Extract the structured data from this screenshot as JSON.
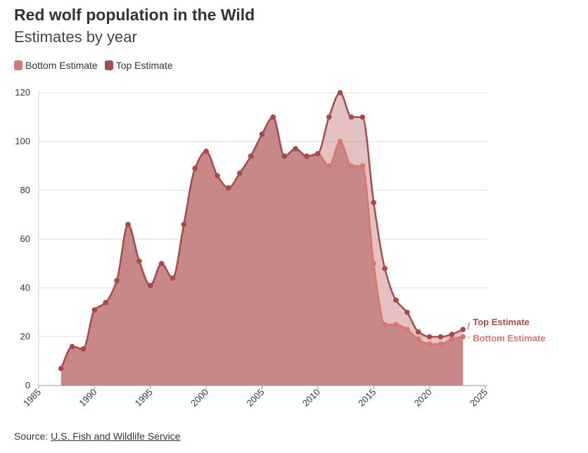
{
  "header": {
    "title": "Red wolf population in the Wild",
    "subtitle": "Estimates by year"
  },
  "legend": {
    "items": [
      {
        "label": "Bottom Estimate",
        "color": "#d97571"
      },
      {
        "label": "Top Estimate",
        "color": "#a64b4d"
      }
    ]
  },
  "footer": {
    "source_prefix": "Source: ",
    "source_link": "U.S. Fish and Wildlife Service"
  },
  "chart_data": {
    "type": "area",
    "title": "Red wolf population in the Wild",
    "subtitle": "Estimates by year",
    "xlim": [
      1985,
      2025
    ],
    "ylim": [
      0,
      120
    ],
    "x_ticks": [
      1985,
      1990,
      1995,
      2000,
      2005,
      2010,
      2015,
      2020,
      2025
    ],
    "y_ticks": [
      0,
      20,
      40,
      60,
      80,
      100,
      120
    ],
    "grid": true,
    "legend_position": "top-left",
    "x": [
      1987,
      1988,
      1989,
      1990,
      1991,
      1992,
      1993,
      1994,
      1995,
      1996,
      1997,
      1998,
      1999,
      2000,
      2001,
      2002,
      2003,
      2004,
      2005,
      2006,
      2007,
      2008,
      2009,
      2010,
      2011,
      2012,
      2013,
      2014,
      2015,
      2016,
      2017,
      2018,
      2019,
      2020,
      2021,
      2022,
      2023
    ],
    "series": [
      {
        "name": "Bottom Estimate",
        "color": "#d97571",
        "end_label": "Bottom Estimate",
        "values": [
          7,
          16,
          15,
          31,
          34,
          43,
          66,
          51,
          41,
          50,
          44,
          66,
          89,
          96,
          86,
          81,
          87,
          94,
          103,
          110,
          94,
          97,
          94,
          95,
          90,
          100,
          90,
          90,
          50,
          25,
          25,
          23,
          19,
          17,
          17,
          19,
          20
        ]
      },
      {
        "name": "Top Estimate",
        "color": "#a64b4d",
        "end_label": "Top Estimate",
        "values": [
          7,
          16,
          15,
          31,
          34,
          43,
          66,
          51,
          41,
          50,
          44,
          66,
          89,
          96,
          86,
          81,
          87,
          94,
          103,
          110,
          94,
          97,
          94,
          95,
          110,
          120,
          110,
          110,
          75,
          48,
          35,
          30,
          22,
          20,
          20,
          21,
          23
        ]
      }
    ]
  }
}
